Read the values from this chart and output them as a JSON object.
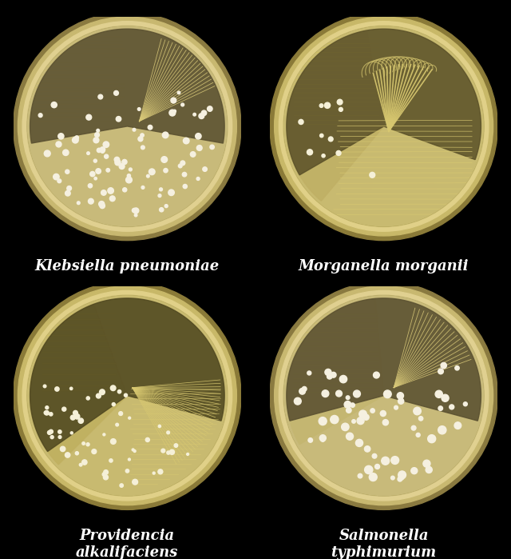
{
  "background_color": "#000000",
  "fig_width": 6.4,
  "fig_height": 6.99,
  "plates": [
    {
      "name": "Klebsiella pneumoniae",
      "label_line1": "Klebsiella pneumoniae",
      "label_line2": null,
      "row": 0,
      "col": 0,
      "agar_color": "#c8ba7a",
      "agar_color2": "#b0a060",
      "rim_outer": "#8a7a40",
      "rim_inner": "#c8b870",
      "rim_highlight": "#e0d090",
      "dark_agar": "#5a5030",
      "streak_color": "#d8c878",
      "colony_color": "#f5f0e0",
      "colony_type": "klebsiella"
    },
    {
      "name": "Morganella morganii",
      "label_line1": "Morganella morganii",
      "label_line2": null,
      "row": 0,
      "col": 1,
      "agar_color": "#c8ba70",
      "agar_color2": "#b0a058",
      "rim_outer": "#8a7a38",
      "rim_inner": "#c8b868",
      "rim_highlight": "#e0d088",
      "dark_agar": "#5a5028",
      "streak_color": "#d8c870",
      "colony_color": "#f5f0d8",
      "colony_type": "morganella"
    },
    {
      "name": "Providencia alkalifaciens",
      "label_line1": "Providencia",
      "label_line2": "alkalifaciens",
      "row": 1,
      "col": 0,
      "agar_color": "#c8ba70",
      "agar_color2": "#b0a058",
      "rim_outer": "#8a7a38",
      "rim_inner": "#c8b868",
      "rim_highlight": "#e0d088",
      "dark_agar": "#504820",
      "streak_color": "#d8c870",
      "colony_color": "#f5f0d8",
      "colony_type": "providencia"
    },
    {
      "name": "Salmonella typhimurium",
      "label_line1": "Salmonella",
      "label_line2": "typhimurium",
      "row": 1,
      "col": 1,
      "agar_color": "#c8ba7a",
      "agar_color2": "#b0a060",
      "rim_outer": "#8a7a40",
      "rim_inner": "#c8b870",
      "rim_highlight": "#e0d090",
      "dark_agar": "#5a5030",
      "streak_color": "#d8c878",
      "colony_color": "#f5f0e0",
      "colony_type": "salmonella"
    }
  ],
  "label_fontsize": 13,
  "label_color": "#ffffff",
  "label_fontstyle": "italic",
  "label_fontweight": "bold"
}
